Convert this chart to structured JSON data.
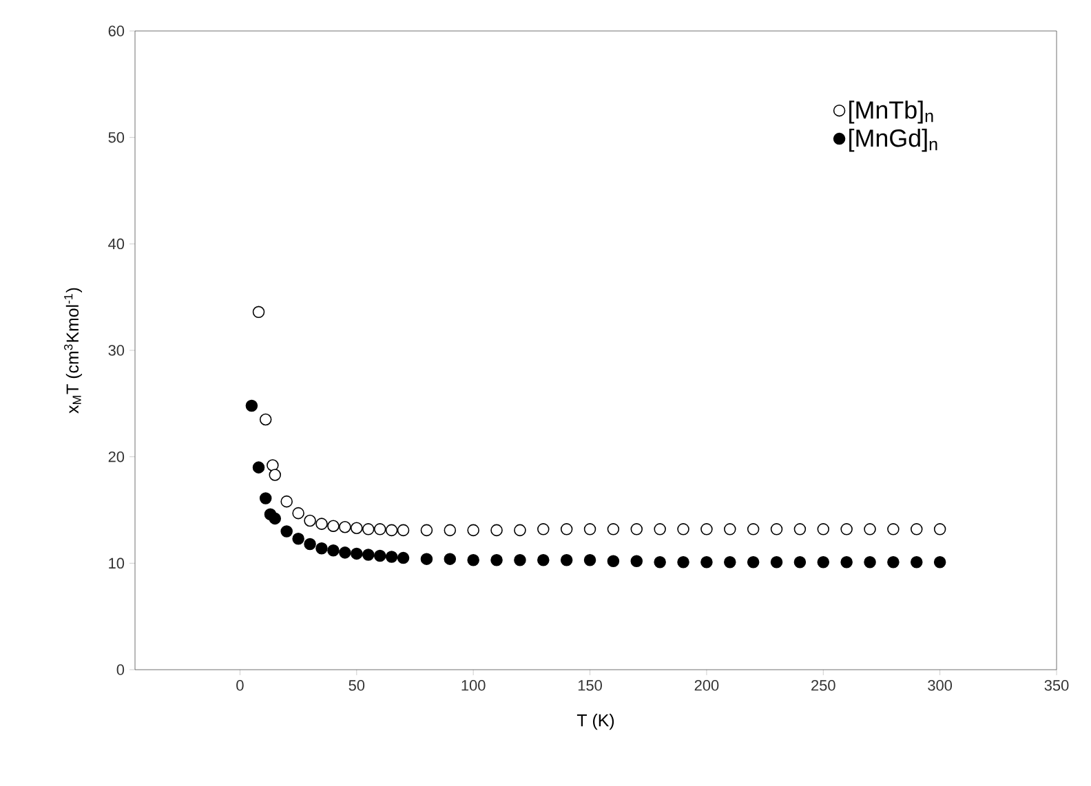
{
  "chart_data": {
    "type": "scatter",
    "xlabel": "T (K)",
    "ylabel": "x$_{M}$T (cm$^{3}$Kmol$^{-1}$)",
    "xlim": [
      -45,
      350
    ],
    "ylim": [
      0,
      60
    ],
    "xticks": [
      0,
      50,
      100,
      150,
      200,
      250,
      300,
      350
    ],
    "yticks": [
      0,
      10,
      20,
      30,
      40,
      50,
      60
    ],
    "legend": "top right",
    "grid": false,
    "series": [
      {
        "name": "[MnTb]$_{n}$",
        "color": "#ffffff",
        "x": [
          8,
          11,
          14,
          15,
          20,
          25,
          30,
          35,
          40,
          45,
          50,
          55,
          60,
          65,
          70,
          80,
          90,
          100,
          110,
          120,
          130,
          140,
          150,
          160,
          170,
          180,
          190,
          200,
          210,
          220,
          230,
          240,
          250,
          260,
          270,
          280,
          290,
          300
        ],
        "values": [
          33.6,
          23.5,
          19.2,
          18.3,
          15.8,
          14.7,
          14.0,
          13.7,
          13.5,
          13.4,
          13.3,
          13.2,
          13.2,
          13.1,
          13.1,
          13.1,
          13.1,
          13.1,
          13.1,
          13.1,
          13.2,
          13.2,
          13.2,
          13.2,
          13.2,
          13.2,
          13.2,
          13.2,
          13.2,
          13.2,
          13.2,
          13.2,
          13.2,
          13.2,
          13.2,
          13.2,
          13.2,
          13.2
        ]
      },
      {
        "name": "[MnGd]$_{n}$",
        "color": "#000000",
        "x": [
          5,
          8,
          11,
          13,
          15,
          20,
          25,
          30,
          35,
          40,
          45,
          50,
          55,
          60,
          65,
          70,
          80,
          90,
          100,
          110,
          120,
          130,
          140,
          150,
          160,
          170,
          180,
          190,
          200,
          210,
          220,
          230,
          240,
          250,
          260,
          270,
          280,
          290,
          300
        ],
        "values": [
          24.8,
          19.0,
          16.1,
          14.6,
          14.2,
          13.0,
          12.3,
          11.8,
          11.4,
          11.2,
          11.0,
          10.9,
          10.8,
          10.7,
          10.6,
          10.5,
          10.4,
          10.4,
          10.3,
          10.3,
          10.3,
          10.3,
          10.3,
          10.3,
          10.2,
          10.2,
          10.1,
          10.1,
          10.1,
          10.1,
          10.1,
          10.1,
          10.1,
          10.1,
          10.1,
          10.1,
          10.1,
          10.1,
          10.1
        ]
      }
    ]
  }
}
